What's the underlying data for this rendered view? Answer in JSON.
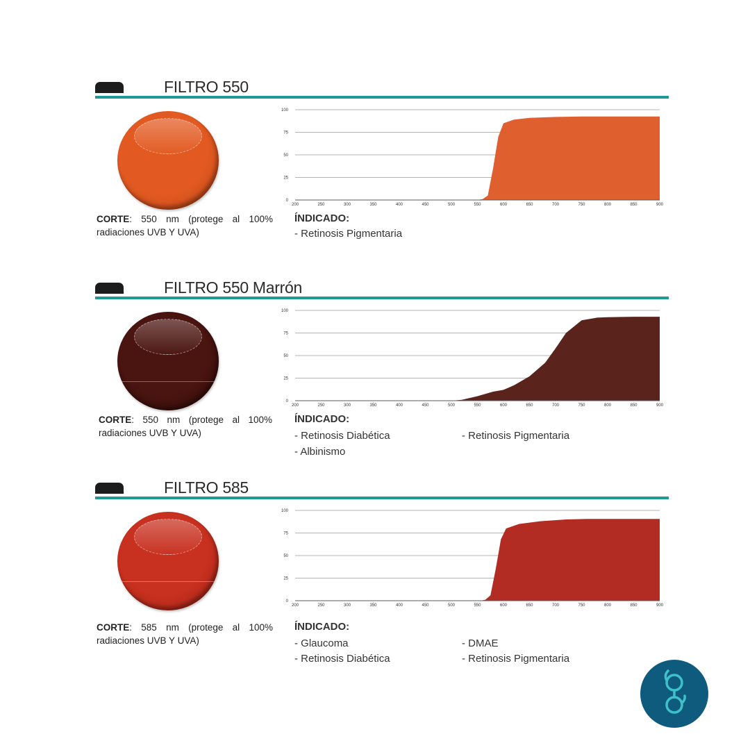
{
  "sections": [
    {
      "title": "FILTRO 550",
      "lens_color": "#e25a21",
      "lens_color_dark": "#b5401a",
      "corte_label": "CORTE",
      "corte_text": ": 550 nm (protege al 100% radiaciones UVB Y UVA)",
      "indicado_label": "ÍNDICADO:",
      "indicado_items": [
        "- Retinosis Pigmentaria"
      ]
    },
    {
      "title": "FILTRO 550 Marrón",
      "lens_color": "#4a1410",
      "lens_color_dark": "#2a0a08",
      "corte_label": "CORTE",
      "corte_text": ": 550 nm (protege al 100% radiaciones UVB Y UVA)",
      "indicado_label": "ÍNDICADO:",
      "indicado_items": [
        "- Retinosis Diabética",
        "- Retinosis Pigmentaria",
        "- Albinismo"
      ]
    },
    {
      "title": "FILTRO 585",
      "lens_color": "#c8301f",
      "lens_color_dark": "#9a2216",
      "corte_label": "CORTE",
      "corte_text": ": 585 nm (protege al 100% radiaciones UVB Y UVA)",
      "indicado_label": "ÍNDICADO:",
      "indicado_items": [
        "- Glaucoma",
        "- DMAE",
        "- Retinosis Diabética",
        "- Retinosis Pigmentaria"
      ]
    }
  ],
  "chart_data": [
    {
      "type": "area",
      "x": [
        200,
        550,
        560,
        570,
        580,
        590,
        600,
        620,
        650,
        700,
        750,
        800,
        850,
        900
      ],
      "series": [
        {
          "color": "#e05f2e",
          "values": [
            0,
            0,
            1,
            5,
            35,
            70,
            85,
            89,
            91,
            92,
            92.5,
            92.5,
            92.5,
            92.5
          ]
        }
      ],
      "xticks": [
        "200",
        "250",
        "300",
        "350",
        "400",
        "450",
        "500",
        "550",
        "600",
        "650",
        "700",
        "750",
        "800",
        "850",
        "900"
      ],
      "yticks": [
        "0",
        "25",
        "50",
        "75",
        "100"
      ],
      "xlim": [
        200,
        900
      ],
      "ylim": [
        0,
        100
      ],
      "grid": true
    },
    {
      "type": "area",
      "x": [
        200,
        500,
        520,
        550,
        580,
        600,
        620,
        650,
        680,
        700,
        720,
        750,
        780,
        800,
        850,
        900
      ],
      "series": [
        {
          "color": "#5a241d",
          "values": [
            0,
            0,
            1,
            5,
            10,
            12,
            17,
            27,
            42,
            58,
            75,
            89,
            92,
            92.5,
            93,
            93
          ]
        }
      ],
      "xticks": [
        "200",
        "250",
        "300",
        "350",
        "400",
        "450",
        "500",
        "550",
        "600",
        "650",
        "700",
        "750",
        "800",
        "850",
        "900"
      ],
      "yticks": [
        "0",
        "25",
        "50",
        "75",
        "100"
      ],
      "xlim": [
        200,
        900
      ],
      "ylim": [
        0,
        100
      ],
      "grid": true
    },
    {
      "type": "area",
      "x": [
        200,
        555,
        565,
        575,
        585,
        595,
        605,
        630,
        670,
        720,
        760,
        800,
        850,
        900
      ],
      "series": [
        {
          "color": "#b32c24",
          "values": [
            0,
            0,
            1,
            6,
            35,
            68,
            80,
            85,
            88,
            90,
            90.5,
            90.5,
            90.5,
            90.5
          ]
        }
      ],
      "xticks": [
        "200",
        "250",
        "300",
        "350",
        "400",
        "450",
        "500",
        "550",
        "600",
        "650",
        "700",
        "750",
        "800",
        "850",
        "900"
      ],
      "yticks": [
        "0",
        "25",
        "50",
        "75",
        "100"
      ],
      "xlim": [
        200,
        900
      ],
      "ylim": [
        0,
        100
      ],
      "grid": true
    }
  ],
  "logo": {
    "icon": "glasses-icon",
    "color": "#0e5b7d"
  }
}
